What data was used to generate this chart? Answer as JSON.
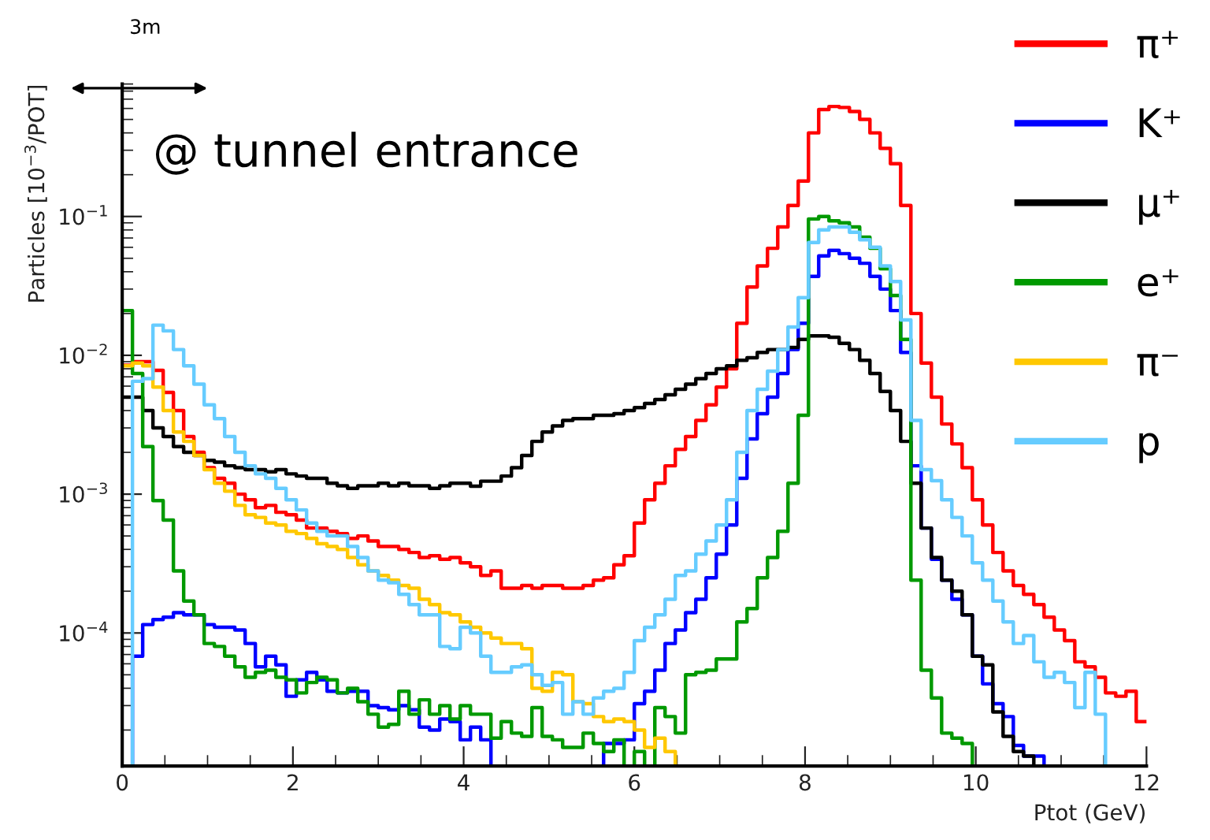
{
  "chart_data": {
    "type": "histogram",
    "xlabel": "Ptot (GeV)",
    "ylabel": "Particles [10$^{−3}$/POT]",
    "annotations": [
      "@ tunnel entrance",
      "3m"
    ],
    "bins": [
      0,
      0.12,
      0.24,
      0.36,
      0.48,
      0.6,
      0.72,
      0.84,
      0.96,
      1.08,
      1.2,
      1.32,
      1.44,
      1.56,
      1.68,
      1.8,
      1.92,
      2.04,
      2.16,
      2.28,
      2.4,
      2.52,
      2.64,
      2.76,
      2.88,
      3,
      3.12,
      3.24,
      3.36,
      3.48,
      3.6,
      3.72,
      3.84,
      3.96,
      4.08,
      4.2,
      4.32,
      4.44,
      4.56,
      4.68,
      4.8,
      4.92,
      5.04,
      5.16,
      5.28,
      5.4,
      5.52,
      5.64,
      5.76,
      5.88,
      6,
      6.12,
      6.24,
      6.36,
      6.48,
      6.6,
      6.72,
      6.84,
      6.96,
      7.08,
      7.2,
      7.32,
      7.44,
      7.56,
      7.68,
      7.8,
      7.92,
      8.04,
      8.16,
      8.28,
      8.4,
      8.52,
      8.64,
      8.76,
      8.88,
      9,
      9.12,
      9.24,
      9.36,
      9.48,
      9.6,
      9.72,
      9.84,
      9.96,
      10.08,
      10.2,
      10.32,
      10.44,
      10.56,
      10.68,
      10.8,
      10.92,
      11.04,
      11.16,
      11.28,
      11.4,
      11.52,
      11.64,
      11.76,
      11.88,
      12
    ],
    "series": [
      {
        "name": "π⁺",
        "color": "#ff0000",
        "values": [
          0.0085,
          0.009,
          0.009,
          0.0078,
          0.0054,
          0.004,
          0.0026,
          0.002,
          0.00155,
          0.0013,
          0.0012,
          0.001,
          0.00091,
          0.0008,
          0.00083,
          0.00074,
          0.00071,
          0.00065,
          0.00057,
          0.00057,
          0.00054,
          0.00052,
          0.00048,
          0.0005,
          0.00046,
          0.00042,
          0.00042,
          0.0004,
          0.00038,
          0.00035,
          0.00036,
          0.00034,
          0.00035,
          0.00032,
          0.0003,
          0.00026,
          0.00028,
          0.00021,
          0.00021,
          0.00022,
          0.00021,
          0.00022,
          0.00022,
          0.00021,
          0.00021,
          0.00022,
          0.00024,
          0.00025,
          0.00031,
          0.00036,
          0.00062,
          0.00091,
          0.0012,
          0.0016,
          0.0021,
          0.0026,
          0.0034,
          0.0044,
          0.0059,
          0.008,
          0.017,
          0.031,
          0.044,
          0.059,
          0.084,
          0.12,
          0.18,
          0.4,
          0.59,
          0.62,
          0.61,
          0.57,
          0.5,
          0.4,
          0.31,
          0.24,
          0.12,
          0.02,
          0.0088,
          0.005,
          0.0032,
          0.0023,
          0.00155,
          0.00091,
          0.0006,
          0.00038,
          0.00028,
          0.00022,
          0.00019,
          0.00016,
          0.00013,
          0.000105,
          8.8e-05,
          6.2e-05,
          5.7e-05,
          4.8e-05,
          3.7e-05,
          3.5e-05,
          3.8e-05,
          2.3e-05
        ]
      },
      {
        "name": "K⁺",
        "color": "#0000ff",
        "values": [
          null,
          6.8e-05,
          0.000115,
          0.000125,
          0.00013,
          0.00014,
          0.000135,
          0.000135,
          0.000115,
          0.00011,
          0.00011,
          0.000105,
          8.4e-05,
          5.7e-05,
          6.8e-05,
          5.9e-05,
          3.5e-05,
          4.6e-05,
          5.2e-05,
          4.6e-05,
          3.8e-05,
          3.7e-05,
          3.8e-05,
          3.8e-05,
          3e-05,
          2.9e-05,
          2.8e-05,
          3e-05,
          2.8e-05,
          2.1e-05,
          2e-05,
          2.4e-05,
          2.3e-05,
          1.7e-05,
          2.1e-05,
          1.7e-05,
          null,
          null,
          null,
          null,
          null,
          null,
          null,
          null,
          null,
          null,
          null,
          1.6e-05,
          1.6e-05,
          1.7e-05,
          3.1e-05,
          3.8e-05,
          5.4e-05,
          8.4e-05,
          0.000105,
          0.00014,
          0.000175,
          0.00025,
          0.00037,
          0.0006,
          0.0013,
          0.0025,
          0.0038,
          0.005,
          0.0074,
          0.011,
          0.017,
          0.037,
          0.052,
          0.057,
          0.054,
          0.05,
          0.046,
          0.037,
          0.03,
          0.021,
          0.0105,
          0.0016,
          0.00057,
          0.00034,
          0.00024,
          0.000175,
          0.000135,
          6.8e-05,
          4.3e-05,
          3.1e-05,
          2.5e-05,
          1.55e-05,
          1.3e-05,
          1.3e-05,
          null,
          null,
          null,
          null,
          null,
          null,
          null,
          null,
          null,
          null
        ]
      },
      {
        "name": "μ⁺",
        "color": "#000000",
        "values": [
          0.005,
          0.005,
          0.004,
          0.003,
          0.0026,
          0.0022,
          0.002,
          0.0019,
          0.00175,
          0.0017,
          0.0016,
          0.00155,
          0.0015,
          0.0015,
          0.00145,
          0.0015,
          0.0014,
          0.00135,
          0.0013,
          0.0013,
          0.0012,
          0.00115,
          0.0011,
          0.00115,
          0.00115,
          0.0012,
          0.00115,
          0.0012,
          0.00115,
          0.00115,
          0.0011,
          0.00115,
          0.0012,
          0.0012,
          0.00114,
          0.00124,
          0.00124,
          0.00135,
          0.00155,
          0.0019,
          0.0024,
          0.0028,
          0.0031,
          0.0034,
          0.0035,
          0.0035,
          0.0037,
          0.0037,
          0.0038,
          0.004,
          0.0042,
          0.0045,
          0.0048,
          0.0052,
          0.0057,
          0.0062,
          0.0068,
          0.0074,
          0.008,
          0.0084,
          0.0092,
          0.0096,
          0.0105,
          0.011,
          0.011,
          0.0114,
          0.013,
          0.0138,
          0.0138,
          0.0135,
          0.0122,
          0.011,
          0.0092,
          0.0074,
          0.0055,
          0.004,
          0.0024,
          0.0012,
          0.00057,
          0.00035,
          0.00024,
          0.0002,
          0.000135,
          6.8e-05,
          5.9e-05,
          2.7e-05,
          1.8e-05,
          1.4e-05,
          1.3e-05,
          null,
          null,
          null,
          null,
          null,
          null,
          null,
          null,
          null,
          null,
          null
        ]
      },
      {
        "name": "e⁺",
        "color": "#009900",
        "values": [
          0.021,
          0.0074,
          0.0022,
          0.0009,
          0.00065,
          0.00028,
          0.00017,
          0.000135,
          8.4e-05,
          8e-05,
          6.8e-05,
          5.7e-05,
          4.8e-05,
          5.2e-05,
          5.4e-05,
          4.8e-05,
          4.6e-05,
          3.7e-05,
          4.4e-05,
          4.8e-05,
          4.6e-05,
          3.7e-05,
          4e-05,
          3.2e-05,
          2.6e-05,
          2.1e-05,
          2.2e-05,
          3.8e-05,
          2.6e-05,
          3.3e-05,
          2.6e-05,
          3e-05,
          2.4e-05,
          3e-05,
          2.6e-05,
          2.6e-05,
          1.75e-05,
          2.3e-05,
          1.9e-05,
          1.8e-05,
          2.9e-05,
          1.8e-05,
          1.7e-05,
          1.5e-05,
          1.5e-05,
          1.9e-05,
          1.6e-05,
          1.4e-05,
          1.7e-05,
          null,
          1.4e-05,
          null,
          2.9e-05,
          2.5e-05,
          1.9e-05,
          5e-05,
          5.2e-05,
          5.4e-05,
          6.5e-05,
          6.5e-05,
          0.00012,
          0.00015,
          0.00025,
          0.00035,
          0.00054,
          0.0012,
          0.0037,
          0.096,
          0.1,
          0.093,
          0.09,
          0.084,
          0.071,
          0.059,
          0.042,
          0.027,
          0.013,
          0.00024,
          5.4e-05,
          3.4e-05,
          1.9e-05,
          1.75e-05,
          1.6e-05,
          null,
          null,
          null,
          null,
          null,
          null,
          null,
          null,
          null,
          null,
          null,
          null,
          null,
          null,
          null,
          null,
          null
        ]
      },
      {
        "name": "π⁻",
        "color": "#ffc800",
        "values": [
          0.0084,
          0.0088,
          0.0084,
          0.0059,
          0.004,
          0.0028,
          0.0024,
          0.0019,
          0.0015,
          0.0012,
          0.00105,
          0.00083,
          0.00071,
          0.00068,
          0.00062,
          0.0006,
          0.00054,
          0.00052,
          0.00048,
          0.00044,
          0.00042,
          0.0004,
          0.00035,
          0.00031,
          0.00028,
          0.00026,
          0.00024,
          0.00022,
          0.00021,
          0.000175,
          0.00016,
          0.00014,
          0.000135,
          0.00012,
          0.00011,
          0.0001,
          9.2e-05,
          8.4e-05,
          8.4e-05,
          7.7e-05,
          4e-05,
          3.8e-05,
          5.2e-05,
          5e-05,
          3.2e-05,
          3.1e-05,
          2.5e-05,
          2.3e-05,
          2.4e-05,
          2.3e-05,
          2e-05,
          1.5e-05,
          1.75e-05,
          1.4e-05,
          null,
          null,
          null,
          null,
          null,
          null,
          null,
          null,
          null,
          null,
          null,
          null,
          null,
          null,
          null,
          null,
          null,
          null,
          null,
          null,
          null,
          null,
          null,
          null,
          null,
          null,
          null,
          null,
          null,
          null,
          null,
          null,
          null,
          null,
          null,
          null,
          null,
          null,
          null,
          null,
          null,
          null,
          null,
          null,
          null,
          null
        ]
      },
      {
        "name": "p",
        "color": "#66ccff",
        "values": [
          null,
          0.0065,
          0.0068,
          0.0165,
          0.015,
          0.011,
          0.0084,
          0.0062,
          0.0044,
          0.0035,
          0.0026,
          0.002,
          0.0016,
          0.0014,
          0.0013,
          0.0011,
          0.00091,
          0.00077,
          0.00062,
          0.00054,
          0.0005,
          0.0005,
          0.00042,
          0.00035,
          0.00028,
          0.00024,
          0.00023,
          0.00019,
          0.00016,
          0.000135,
          0.000135,
          8e-05,
          7.7e-05,
          0.00011,
          0.0001,
          6.8e-05,
          5.2e-05,
          5.2e-05,
          5.7e-05,
          5.9e-05,
          5e-05,
          4.2e-05,
          4.4e-05,
          2.6e-05,
          3.2e-05,
          2.6e-05,
          3.4e-05,
          3.8e-05,
          4e-05,
          5.2e-05,
          8.8e-05,
          0.00011,
          0.000135,
          0.000175,
          0.00026,
          0.00028,
          0.00037,
          0.00046,
          0.0006,
          0.00091,
          0.002,
          0.004,
          0.0057,
          0.0077,
          0.011,
          0.016,
          0.026,
          0.065,
          0.08,
          0.084,
          0.084,
          0.077,
          0.068,
          0.06,
          0.044,
          0.034,
          0.018,
          0.0034,
          0.0015,
          0.00125,
          0.00091,
          0.00068,
          0.0005,
          0.00032,
          0.00024,
          0.00017,
          0.00012,
          8.4e-05,
          9.6e-05,
          6.2e-05,
          4.8e-05,
          5.2e-05,
          4.4e-05,
          2.9e-05,
          5.2e-05,
          2.6e-05,
          null,
          null,
          null,
          null
        ]
      }
    ],
    "log": "y",
    "xlim": [
      0,
      12
    ],
    "xticks": [
      0,
      2,
      4,
      6,
      8,
      10,
      12
    ],
    "ylim": [
      1.1e-05,
      0.9
    ],
    "yticks": [
      {
        "value": 0.0001,
        "label": "10$^{−4}$"
      },
      {
        "value": 0.001,
        "label": "10$^{−3}$"
      },
      {
        "value": 0.01,
        "label": "10$^{−2}$"
      },
      {
        "value": 0.1,
        "label": "10$^{−1}$"
      }
    ],
    "grid": false,
    "legend": "top right"
  }
}
